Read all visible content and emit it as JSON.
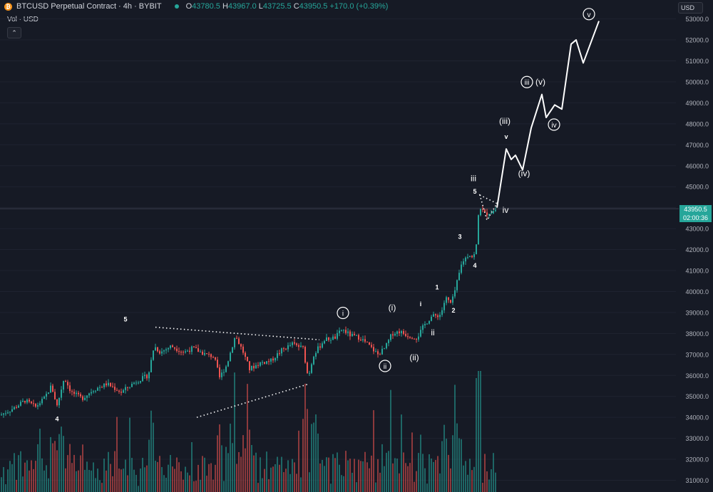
{
  "header": {
    "symbol": "BTCUSD Perpetual Contract · 4h · BYBIT",
    "o_label": "O",
    "open": "43780.5",
    "h_label": "H",
    "high": "43967.0",
    "l_label": "L",
    "low": "43725.5",
    "c_label": "C",
    "close": "43950.5",
    "change": "+170.0 (+0.39%)"
  },
  "volume_label": "Vol · USD",
  "currency": "USD",
  "price_tag": {
    "price": "43950.5",
    "countdown": "02:00:36"
  },
  "chart_data": {
    "type": "candlestick",
    "title": "BTCUSD Perpetual Contract · 4h · BYBIT",
    "y_axis": {
      "min": 31000,
      "max": 53000,
      "ticks": [
        31000,
        32000,
        33000,
        34000,
        35000,
        36000,
        37000,
        38000,
        39000,
        40000,
        41000,
        42000,
        43000,
        44000,
        45000,
        46000,
        47000,
        48000,
        49000,
        50000,
        51000,
        52000,
        53000
      ]
    },
    "price_anchors": [
      [
        0,
        34100
      ],
      [
        20,
        34450
      ],
      [
        35,
        34800
      ],
      [
        50,
        34500
      ],
      [
        62,
        34900
      ],
      [
        72,
        35500
      ],
      [
        80,
        34550
      ],
      [
        90,
        35900
      ],
      [
        100,
        35200
      ],
      [
        115,
        34900
      ],
      [
        130,
        35300
      ],
      [
        150,
        35600
      ],
      [
        170,
        35200
      ],
      [
        190,
        35700
      ],
      [
        208,
        36000
      ],
      [
        216,
        37400
      ],
      [
        225,
        37100
      ],
      [
        240,
        37400
      ],
      [
        258,
        37100
      ],
      [
        270,
        37300
      ],
      [
        288,
        37000
      ],
      [
        300,
        36900
      ],
      [
        308,
        35900
      ],
      [
        318,
        36500
      ],
      [
        330,
        37900
      ],
      [
        340,
        37200
      ],
      [
        350,
        36300
      ],
      [
        365,
        36600
      ],
      [
        380,
        36700
      ],
      [
        395,
        37200
      ],
      [
        410,
        37500
      ],
      [
        425,
        37300
      ],
      [
        432,
        35900
      ],
      [
        440,
        37000
      ],
      [
        455,
        37700
      ],
      [
        470,
        37800
      ],
      [
        480,
        38200
      ],
      [
        492,
        37900
      ],
      [
        505,
        37800
      ],
      [
        515,
        37500
      ],
      [
        530,
        37000
      ],
      [
        540,
        37300
      ],
      [
        550,
        38000
      ],
      [
        560,
        38100
      ],
      [
        572,
        37900
      ],
      [
        585,
        37800
      ],
      [
        595,
        38400
      ],
      [
        605,
        38800
      ],
      [
        618,
        38900
      ],
      [
        625,
        39700
      ],
      [
        633,
        39400
      ],
      [
        640,
        40300
      ],
      [
        648,
        41400
      ],
      [
        658,
        41800
      ],
      [
        664,
        41600
      ],
      [
        668,
        42200
      ],
      [
        672,
        44100
      ],
      [
        680,
        43700
      ],
      [
        690,
        43800
      ],
      [
        697,
        43950
      ]
    ],
    "forecast_path": [
      [
        697,
        44000
      ],
      [
        710,
        46800
      ],
      [
        717,
        46300
      ],
      [
        723,
        46500
      ],
      [
        733,
        45800
      ],
      [
        745,
        47800
      ],
      [
        760,
        49400
      ],
      [
        766,
        48300
      ],
      [
        778,
        48900
      ],
      [
        788,
        48700
      ],
      [
        801,
        51800
      ],
      [
        808,
        52000
      ],
      [
        818,
        50900
      ],
      [
        840,
        52900
      ]
    ],
    "triangle": {
      "upper": [
        [
          218,
          38300
        ],
        [
          448,
          37700
        ]
      ],
      "lower": [
        [
          276,
          34000
        ],
        [
          434,
          35600
        ]
      ]
    },
    "small_triangle": {
      "points": [
        [
          673,
          44600
        ],
        [
          697,
          44200
        ],
        [
          683,
          43400
        ]
      ]
    },
    "wave_labels": [
      {
        "text": "5",
        "x": 176,
        "y": 38700,
        "style": "plain"
      },
      {
        "text": "4",
        "x": 80,
        "y": 33950,
        "style": "plain"
      },
      {
        "text": "i",
        "x": 481,
        "y": 38980,
        "style": "circle"
      },
      {
        "text": "ii",
        "x": 540,
        "y": 36450,
        "style": "circle"
      },
      {
        "text": "(i)",
        "x": 550,
        "y": 39230,
        "style": "plain"
      },
      {
        "text": "(ii)",
        "x": 581,
        "y": 36850,
        "style": "plain"
      },
      {
        "text": "i",
        "x": 590,
        "y": 39430,
        "style": "plain"
      },
      {
        "text": "ii",
        "x": 607,
        "y": 38050,
        "style": "plain"
      },
      {
        "text": "1",
        "x": 613,
        "y": 40230,
        "style": "plain"
      },
      {
        "text": "2",
        "x": 636,
        "y": 39140,
        "style": "plain"
      },
      {
        "text": "3",
        "x": 645,
        "y": 42640,
        "style": "plain"
      },
      {
        "text": "4",
        "x": 666,
        "y": 41270,
        "style": "plain"
      },
      {
        "text": "5",
        "x": 666,
        "y": 44800,
        "style": "plain"
      },
      {
        "text": "iii",
        "x": 664,
        "y": 45400,
        "style": "plain"
      },
      {
        "text": "iv",
        "x": 709,
        "y": 43880,
        "style": "plain"
      },
      {
        "text": "v",
        "x": 710,
        "y": 47420,
        "style": "plain"
      },
      {
        "text": "(iii)",
        "x": 708,
        "y": 48130,
        "style": "plain"
      },
      {
        "text": "(iv)",
        "x": 735,
        "y": 45630,
        "style": "plain"
      },
      {
        "text": "iii",
        "x": 739,
        "y": 49990,
        "style": "circle"
      },
      {
        "text": "(v)",
        "x": 758,
        "y": 49990,
        "style": "plain"
      },
      {
        "text": "iv",
        "x": 777,
        "y": 47960,
        "style": "circle"
      },
      {
        "text": "v",
        "x": 826,
        "y": 53230,
        "style": "circle"
      }
    ]
  }
}
